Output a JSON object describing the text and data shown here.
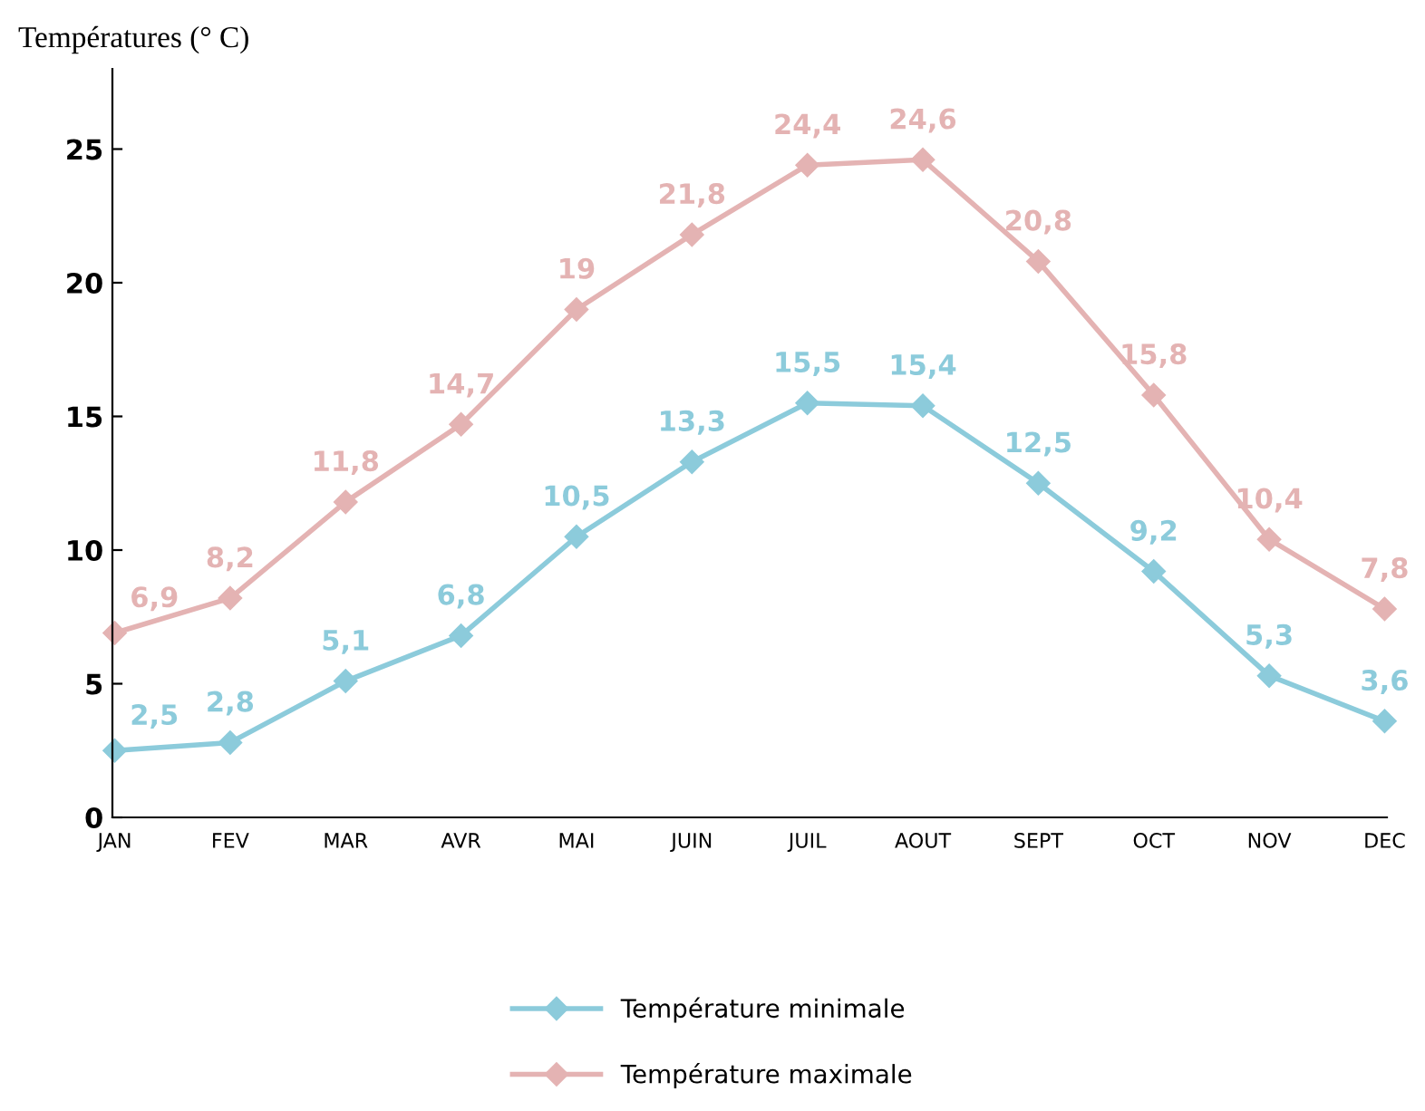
{
  "chart_data": {
    "type": "line",
    "ylabel": "Températures (° C)",
    "categories": [
      "JAN",
      "FEV",
      "MAR",
      "AVR",
      "MAI",
      "JUIN",
      "JUIL",
      "AOUT",
      "SEPT",
      "OCT",
      "NOV",
      "DEC"
    ],
    "series": [
      {
        "name": "Température minimale",
        "color": "#8ccbdb",
        "values": [
          2.5,
          2.8,
          5.1,
          6.8,
          10.5,
          13.3,
          15.5,
          15.4,
          12.5,
          9.2,
          5.3,
          3.6
        ],
        "value_labels": [
          "2,5",
          "2,8",
          "5,1",
          "6,8",
          "10,5",
          "13,3",
          "15,5",
          "15,4",
          "12,5",
          "9,2",
          "5,3",
          "3,6"
        ]
      },
      {
        "name": "Température maximale",
        "color": "#e4b3b3",
        "values": [
          6.9,
          8.2,
          11.8,
          14.7,
          19,
          21.8,
          24.4,
          24.6,
          20.8,
          15.8,
          10.4,
          7.8
        ],
        "value_labels": [
          "6,9",
          "8,2",
          "11,8",
          "14,7",
          "19",
          "21,8",
          "24,4",
          "24,6",
          "20,8",
          "15,8",
          "10,4",
          "7,8"
        ]
      }
    ],
    "ylim": [
      0,
      28
    ],
    "yticks": [
      0,
      5,
      10,
      15,
      20,
      25
    ],
    "grid": false,
    "legend": "bottom",
    "marker": "diamond",
    "line_style": "solid"
  }
}
